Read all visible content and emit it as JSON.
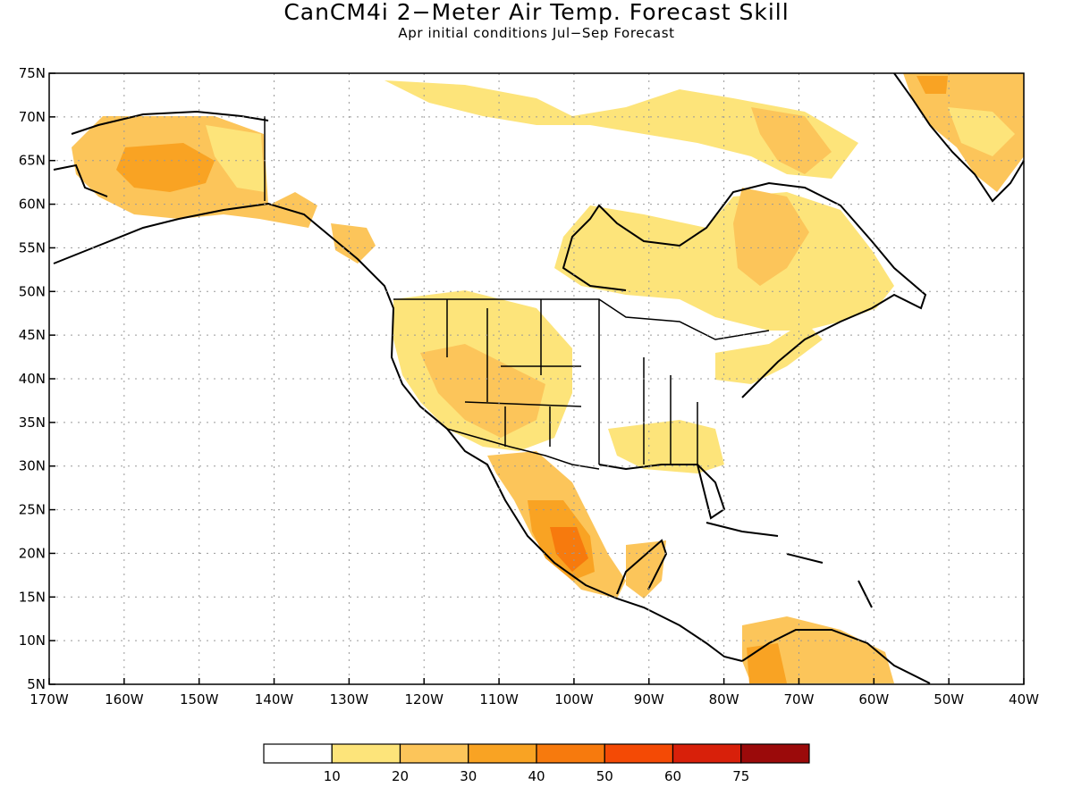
{
  "title": "CanCM4i 2−Meter Air Temp. Forecast Skill",
  "subtitle": "Apr initial conditions  Jul−Sep Forecast",
  "map": {
    "lat_labels": [
      "75N",
      "70N",
      "65N",
      "60N",
      "55N",
      "50N",
      "45N",
      "40N",
      "35N",
      "30N",
      "25N",
      "20N",
      "15N",
      "10N",
      "5N"
    ],
    "lon_labels": [
      "170W",
      "160W",
      "150W",
      "140W",
      "130W",
      "120W",
      "110W",
      "100W",
      "90W",
      "80W",
      "70W",
      "60W",
      "50W",
      "40W"
    ],
    "lat_range": [
      5,
      75
    ],
    "lon_range": [
      -170,
      -40
    ],
    "grid": "dotted"
  },
  "colorbar": {
    "labels": [
      "10",
      "20",
      "30",
      "40",
      "50",
      "60",
      "75"
    ],
    "colors": [
      "#ffffff",
      "#fde47a",
      "#fcc55a",
      "#f9a323",
      "#f77a0d",
      "#f44a05",
      "#d8200a",
      "#9b0a0a"
    ]
  },
  "skill_regions": [
    {
      "name": "alaska",
      "level": 2
    },
    {
      "name": "alaska-core",
      "level": 3
    },
    {
      "name": "greenland",
      "level": 3
    },
    {
      "name": "mexico",
      "level": 3
    },
    {
      "name": "mexico-core",
      "level": 4
    },
    {
      "name": "labrador",
      "level": 2
    },
    {
      "name": "western-us",
      "level": 2
    },
    {
      "name": "south-america",
      "level": 3
    }
  ]
}
